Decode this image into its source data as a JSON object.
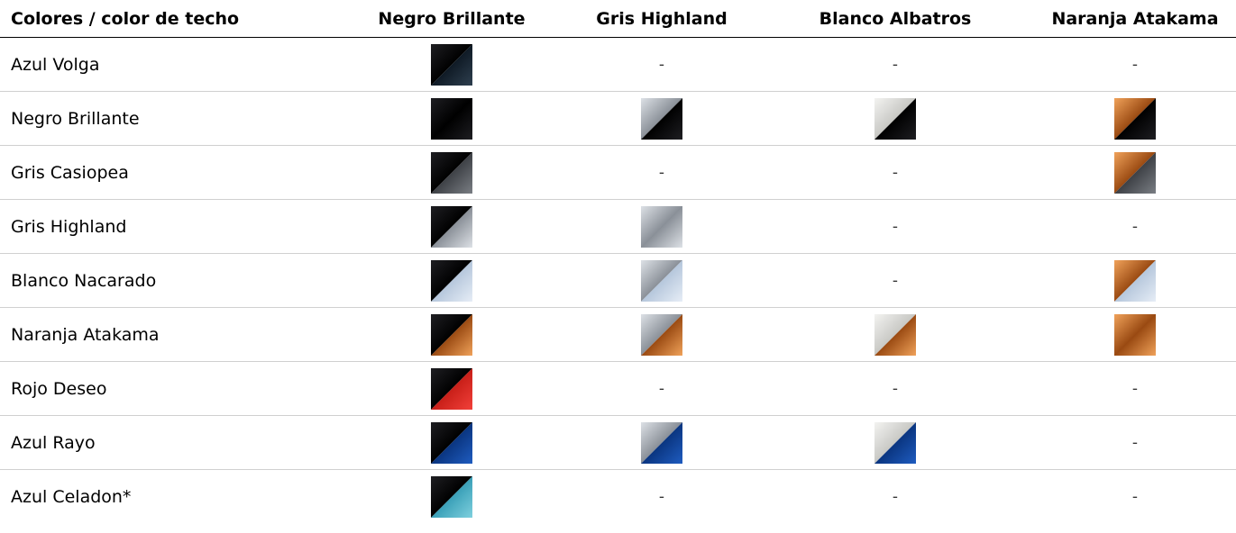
{
  "header": {
    "label": "Colores / color de techo",
    "columns": [
      "Negro Brillante",
      "Gris Highland",
      "Blanco Albatros",
      "Naranja Atakama"
    ]
  },
  "roof_colors": {
    "Negro Brillante": {
      "light": "#1e1e22",
      "dark": "#000000"
    },
    "Gris Highland": {
      "light": "#dde1e6",
      "dark": "#8a9098"
    },
    "Blanco Albatros": {
      "light": "#f3f3f1",
      "dark": "#c8c8c4"
    },
    "Naranja Atakama": {
      "light": "#f0a25a",
      "dark": "#9a4a12"
    }
  },
  "rows": [
    {
      "label": "Azul Volga",
      "body": {
        "light": "#2e3f4f",
        "dark": "#0f1a25"
      },
      "cells": [
        "swatch",
        "-",
        "-",
        "-"
      ]
    },
    {
      "label": "Negro Brillante",
      "body": {
        "light": "#1e1e22",
        "dark": "#000000"
      },
      "cells": [
        "swatch",
        "swatch",
        "swatch",
        "swatch"
      ]
    },
    {
      "label": "Gris Casiopea",
      "body": {
        "light": "#7a7e84",
        "dark": "#3e4146"
      },
      "cells": [
        "swatch",
        "-",
        "-",
        "swatch"
      ]
    },
    {
      "label": "Gris Highland",
      "body": {
        "light": "#dde1e6",
        "dark": "#8a9098"
      },
      "cells": [
        "swatch",
        "swatch",
        "-",
        "-"
      ]
    },
    {
      "label": "Blanco Nacarado",
      "body": {
        "light": "#e6edf6",
        "dark": "#b6c7dc"
      },
      "cells": [
        "swatch",
        "swatch",
        "-",
        "swatch"
      ]
    },
    {
      "label": "Naranja Atakama",
      "body": {
        "light": "#f0a25a",
        "dark": "#9a4a12"
      },
      "cells": [
        "swatch",
        "swatch",
        "swatch",
        "swatch"
      ]
    },
    {
      "label": "Rojo Deseo",
      "body": {
        "light": "#f2403a",
        "dark": "#c81f18"
      },
      "cells": [
        "swatch",
        "-",
        "-",
        "-"
      ]
    },
    {
      "label": "Azul Rayo",
      "body": {
        "light": "#1f5cc0",
        "dark": "#0a3580"
      },
      "cells": [
        "swatch",
        "swatch",
        "swatch",
        "-"
      ]
    },
    {
      "label": "Azul Celadon*",
      "body": {
        "light": "#7fd0de",
        "dark": "#3aa0b8"
      },
      "cells": [
        "swatch",
        "-",
        "-",
        "-"
      ]
    }
  ]
}
